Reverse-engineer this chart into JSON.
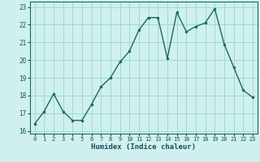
{
  "x": [
    0,
    1,
    2,
    3,
    4,
    5,
    6,
    7,
    8,
    9,
    10,
    11,
    12,
    13,
    14,
    15,
    16,
    17,
    18,
    19,
    20,
    21,
    22,
    23
  ],
  "y": [
    16.4,
    17.1,
    18.1,
    17.1,
    16.6,
    16.6,
    17.5,
    18.5,
    19.0,
    19.9,
    20.5,
    21.7,
    22.4,
    22.4,
    20.1,
    22.7,
    21.6,
    21.9,
    22.1,
    22.9,
    20.9,
    19.6,
    18.3,
    17.9
  ],
  "xlabel": "Humidex (Indice chaleur)",
  "xlim": [
    -0.5,
    23.5
  ],
  "ylim": [
    15.85,
    23.3
  ],
  "yticks": [
    16,
    17,
    18,
    19,
    20,
    21,
    22,
    23
  ],
  "xticks": [
    0,
    1,
    2,
    3,
    4,
    5,
    6,
    7,
    8,
    9,
    10,
    11,
    12,
    13,
    14,
    15,
    16,
    17,
    18,
    19,
    20,
    21,
    22,
    23
  ],
  "line_color": "#1a6b5a",
  "marker_color": "#1a6b5a",
  "bg_color": "#cff0ee",
  "grid_color": "#a0d8d4",
  "label_color": "#1a4f5a",
  "tick_label_color": "#1a4f5a",
  "font_name": "monospace"
}
